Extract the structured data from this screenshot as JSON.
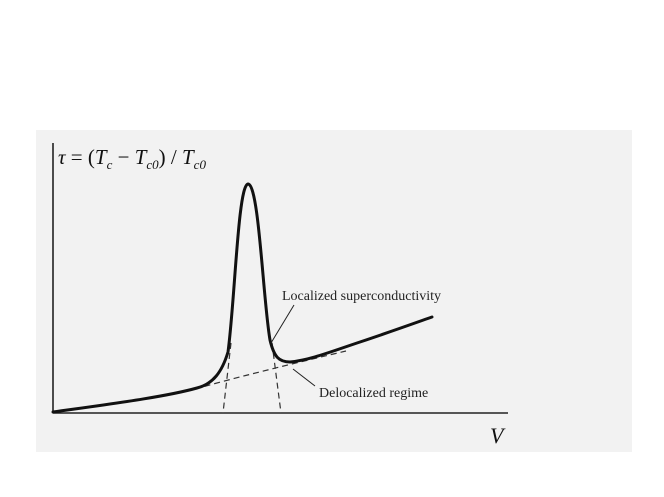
{
  "diagram": {
    "y_axis_label": {
      "symbol": "τ",
      "equals": " = (",
      "tc": "T",
      "tc_sub": "c",
      "minus": " − ",
      "tc0": "T",
      "tc0_sub": "c0",
      "close_div": ") / ",
      "tc0b": "T",
      "tc0b_sub": "c0"
    },
    "x_axis_label": "V",
    "annotations": {
      "localized": "Localized superconductivity",
      "delocalized": "Delocalized regime"
    },
    "colors": {
      "curve": "#111111",
      "dashed": "#333333",
      "axis": "#222222",
      "panel": "#f2f2f2"
    }
  }
}
